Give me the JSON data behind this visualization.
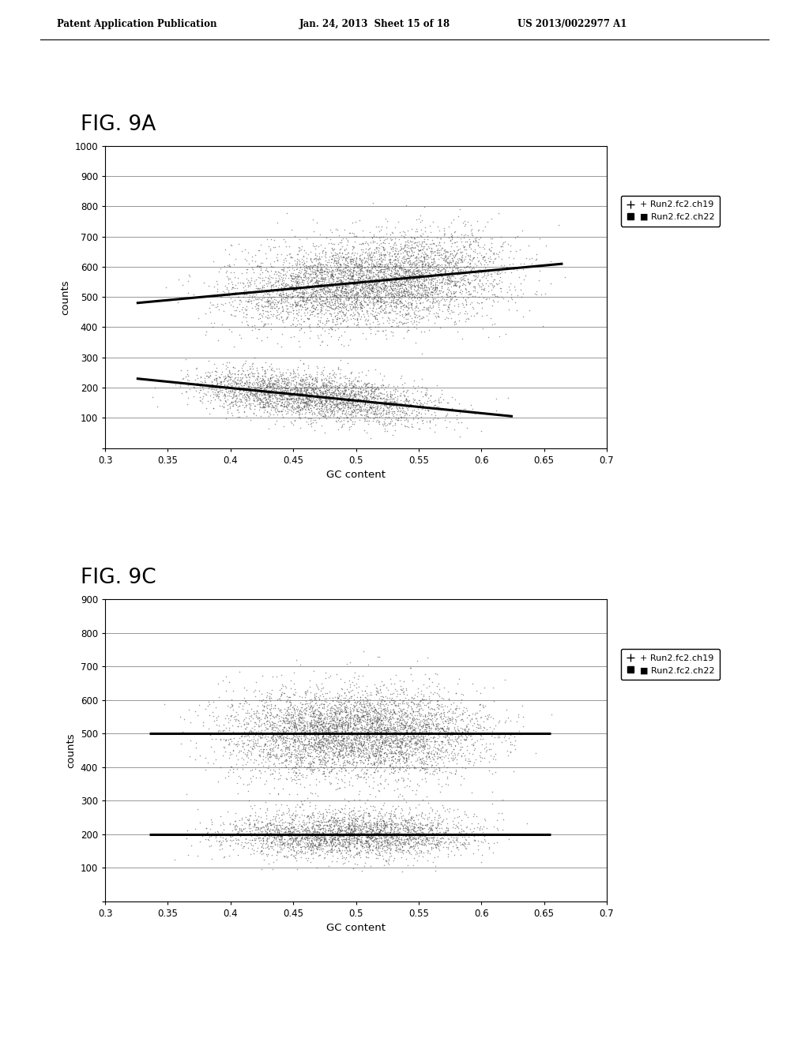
{
  "header_left": "Patent Application Publication",
  "header_mid": "Jan. 24, 2013  Sheet 15 of 18",
  "header_right": "US 2013/0022977 A1",
  "fig_9a_label": "FIG. 9A",
  "fig_9c_label": "FIG. 9C",
  "xlabel": "GC content",
  "ylabel": "counts",
  "legend_entry1": "+ Run2.fc2.ch19",
  "legend_entry2": "■ Run2.fc2.ch22",
  "plot_bg": "#ffffff",
  "scatter_color": "#555555",
  "line_color": "#000000",
  "fig9a_ylim": [
    0,
    1000
  ],
  "fig9a_yticks": [
    0,
    100,
    200,
    300,
    400,
    500,
    600,
    700,
    800,
    900,
    1000
  ],
  "fig9c_ylim": [
    0,
    900
  ],
  "fig9c_yticks": [
    0,
    100,
    200,
    300,
    400,
    500,
    600,
    700,
    800,
    900
  ],
  "xlim": [
    0.3,
    0.7
  ],
  "xticks": [
    0.3,
    0.35,
    0.4,
    0.45,
    0.5,
    0.55,
    0.6,
    0.65,
    0.7
  ],
  "seed": 42,
  "n_points_ch19": 5000,
  "n_points_ch22": 3000
}
